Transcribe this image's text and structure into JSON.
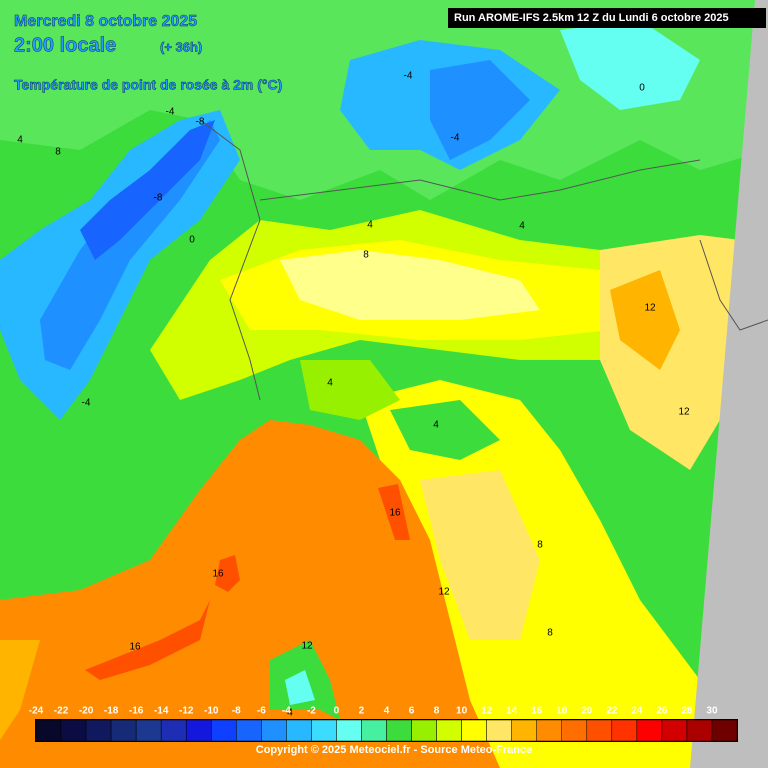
{
  "header": {
    "date": "Mercredi 8 octobre 2025",
    "time": "2:00 locale",
    "lead": "(+ 36h)",
    "variable": "Température de point de rosée à 2m (°C)",
    "run": "Run AROME-IFS 2.5km 12 Z du Lundi 6 octobre 2025"
  },
  "contour_labels": [
    4,
    8,
    -4,
    -8,
    0,
    4,
    -4,
    -4,
    0,
    4,
    8,
    12,
    12,
    4,
    4,
    16,
    16,
    16,
    12,
    12,
    8,
    8,
    -8,
    -4,
    4
  ],
  "legend": {
    "labels": [
      -24,
      -22,
      -20,
      -18,
      -16,
      -14,
      -12,
      -10,
      -8,
      -6,
      -4,
      -2,
      0,
      2,
      4,
      6,
      8,
      10,
      12,
      14,
      16,
      18,
      20,
      22,
      24,
      26,
      28,
      30
    ],
    "colors": [
      "#08082a",
      "#0c0c44",
      "#10185e",
      "#162a78",
      "#1c3890",
      "#1e2eb4",
      "#1418dc",
      "#1040ff",
      "#1864ff",
      "#1e90ff",
      "#28b8ff",
      "#3cdcff",
      "#64fff0",
      "#46f0a0",
      "#3cdc3c",
      "#96f000",
      "#d2ff00",
      "#ffff00",
      "#ffe664",
      "#ffb400",
      "#ff8c00",
      "#ff6e00",
      "#ff5000",
      "#ff3200",
      "#ff0000",
      "#d20000",
      "#aa0000",
      "#6e0000"
    ]
  },
  "copyright": "Copyright © 2025 Meteociel.fr - Source Meteo-France"
}
